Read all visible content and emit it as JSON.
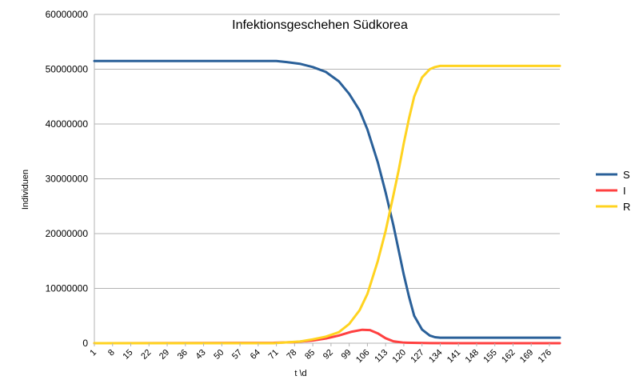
{
  "chart_data": {
    "type": "line",
    "title": "Infektionsgeschehen Südkorea",
    "xlabel": "t \\d",
    "ylabel": "Individuen",
    "xlim": [
      1,
      180
    ],
    "ylim": [
      0,
      60000000
    ],
    "y_ticks": [
      0,
      10000000,
      20000000,
      30000000,
      40000000,
      50000000,
      60000000
    ],
    "y_tick_labels": [
      "0",
      "10000000",
      "20000000",
      "30000000",
      "40000000",
      "50000000",
      "60000000"
    ],
    "x_ticks": [
      1,
      8,
      15,
      22,
      29,
      36,
      43,
      50,
      57,
      64,
      71,
      78,
      85,
      92,
      99,
      106,
      113,
      120,
      127,
      134,
      141,
      148,
      155,
      162,
      169,
      176
    ],
    "x_tick_labels": [
      "1",
      "8",
      "15",
      "22",
      "29",
      "36",
      "43",
      "50",
      "57",
      "64",
      "71",
      "78",
      "85",
      "92",
      "99",
      "106",
      "113",
      "120",
      "127",
      "134",
      "141",
      "148",
      "155",
      "162",
      "169",
      "176"
    ],
    "grid": true,
    "legend_position": "right",
    "series": [
      {
        "name": "S",
        "color": "#2a6099",
        "x": [
          1,
          71,
          75,
          80,
          85,
          90,
          95,
          99,
          103,
          106,
          110,
          113,
          116,
          118,
          120,
          122,
          124,
          127,
          130,
          132,
          134,
          140,
          150,
          160,
          170,
          180
        ],
        "y": [
          51500000,
          51500000,
          51300000,
          51000000,
          50400000,
          49500000,
          47800000,
          45500000,
          42500000,
          39000000,
          33000000,
          27500000,
          21500000,
          17000000,
          12500000,
          8500000,
          5000000,
          2500000,
          1400000,
          1100000,
          1000000,
          1000000,
          1000000,
          1000000,
          1000000,
          1000000
        ]
      },
      {
        "name": "I",
        "color": "#ff4040",
        "x": [
          1,
          70,
          78,
          85,
          90,
          95,
          100,
          104,
          107,
          110,
          113,
          116,
          120,
          130,
          140,
          180
        ],
        "y": [
          0,
          80000,
          200000,
          500000,
          850000,
          1400000,
          2100000,
          2450000,
          2400000,
          1800000,
          900000,
          350000,
          100000,
          20000,
          0,
          0
        ]
      },
      {
        "name": "R",
        "color": "#ffd320",
        "x": [
          1,
          70,
          80,
          85,
          90,
          95,
          99,
          103,
          106,
          110,
          113,
          116,
          118,
          120,
          122,
          124,
          127,
          130,
          132,
          134,
          140,
          180
        ],
        "y": [
          0,
          0,
          300000,
          700000,
          1200000,
          2000000,
          3500000,
          6000000,
          9000000,
          15000000,
          20500000,
          27000000,
          31500000,
          36500000,
          41000000,
          45000000,
          48500000,
          50000000,
          50400000,
          50600000,
          50600000,
          50600000
        ]
      }
    ]
  }
}
